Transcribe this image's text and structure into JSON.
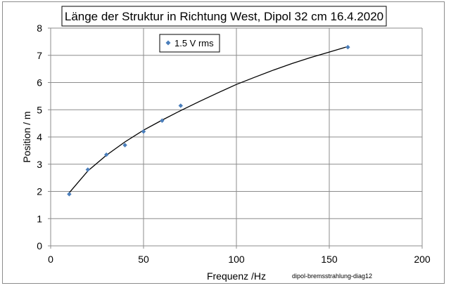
{
  "chart_data": {
    "type": "scatter",
    "title": "Länge der Struktur in Richtung West, Dipol 32 cm 16.4.2020",
    "xlabel": "Frequenz /Hz",
    "ylabel": "Position / m",
    "xlim": [
      0,
      200
    ],
    "ylim": [
      0,
      8
    ],
    "x_ticks": [
      0,
      50,
      100,
      150,
      200
    ],
    "y_ticks": [
      0,
      1,
      2,
      3,
      4,
      5,
      6,
      7,
      8
    ],
    "grid": true,
    "legend_position": "top-center",
    "series": [
      {
        "name": "1.5 V rms",
        "color": "#4a7ebb",
        "marker": "diamond",
        "x": [
          10,
          20,
          30,
          40,
          50,
          60,
          70,
          160
        ],
        "y": [
          1.9,
          2.8,
          3.35,
          3.7,
          4.2,
          4.6,
          5.15,
          7.3
        ]
      }
    ],
    "trendline": {
      "type": "power",
      "color": "#000000",
      "x": [
        10,
        20,
        30,
        40,
        50,
        60,
        70,
        80,
        90,
        100,
        110,
        120,
        130,
        140,
        150,
        160
      ],
      "y": [
        1.95,
        2.75,
        3.33,
        3.82,
        4.25,
        4.62,
        4.97,
        5.3,
        5.62,
        5.93,
        6.2,
        6.46,
        6.7,
        6.92,
        7.12,
        7.32
      ]
    },
    "annotation": "dipol-bremsstrahlung-diag12"
  }
}
